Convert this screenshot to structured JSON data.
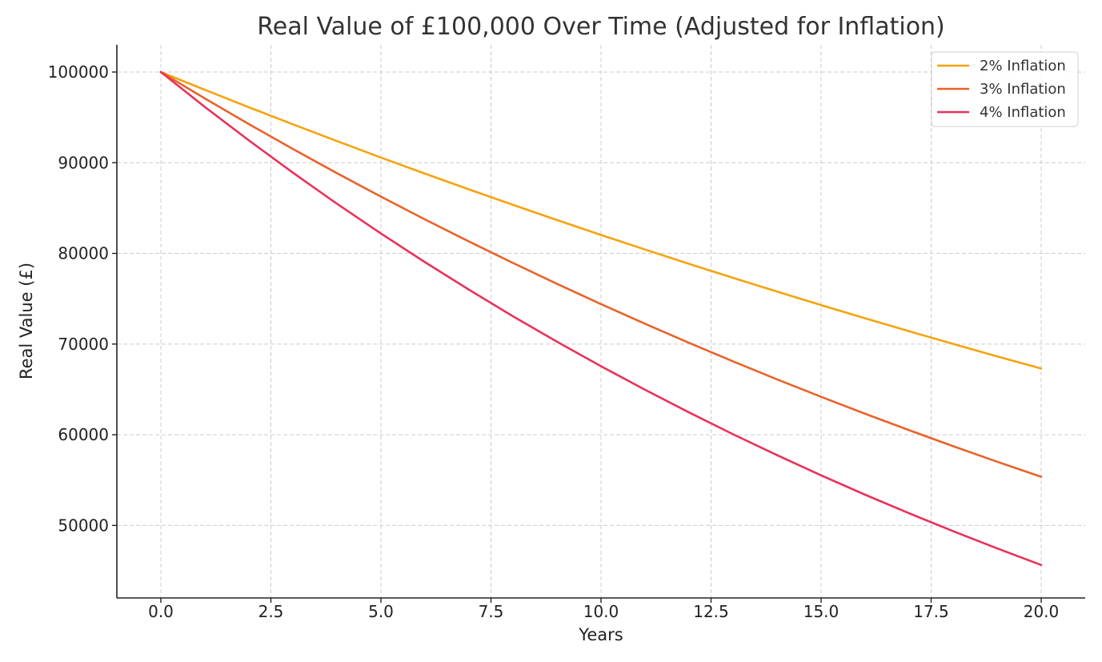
{
  "chart_data": {
    "type": "line",
    "title": "Real Value of £100,000 Over Time (Adjusted for Inflation)",
    "xlabel": "Years",
    "ylabel": "Real Value (£)",
    "xlim": [
      -1,
      21
    ],
    "ylim": [
      42000,
      103000
    ],
    "xticks": [
      0,
      2.5,
      5,
      7.5,
      10,
      12.5,
      15,
      17.5,
      20
    ],
    "xtick_labels": [
      "0.0",
      "2.5",
      "5.0",
      "7.5",
      "10.0",
      "12.5",
      "15.0",
      "17.5",
      "20.0"
    ],
    "yticks": [
      50000,
      60000,
      70000,
      80000,
      90000,
      100000
    ],
    "ytick_labels": [
      "50000",
      "60000",
      "70000",
      "80000",
      "90000",
      "100000"
    ],
    "grid": true,
    "legend_position": "top-right",
    "x": [
      0,
      1,
      2,
      3,
      4,
      5,
      6,
      7,
      8,
      9,
      10,
      11,
      12,
      13,
      14,
      15,
      16,
      17,
      18,
      19,
      20
    ],
    "series": [
      {
        "name": "2% Inflation",
        "color": "#f5a30f",
        "values": [
          100000,
          98039,
          96117,
          94232,
          92385,
          90573,
          88797,
          87056,
          85349,
          83676,
          82035,
          80426,
          78849,
          77303,
          75788,
          74301,
          72845,
          71416,
          70016,
          68643,
          67297
        ]
      },
      {
        "name": "3% Inflation",
        "color": "#e8632a",
        "values": [
          100000,
          97087,
          94260,
          91514,
          88849,
          86261,
          83748,
          81309,
          78941,
          76642,
          74409,
          72242,
          70138,
          68095,
          66112,
          64186,
          62317,
          60502,
          58739,
          57029,
          55368
        ]
      },
      {
        "name": "4% Inflation",
        "color": "#e8325a",
        "values": [
          100000,
          96154,
          92456,
          88900,
          85480,
          82193,
          79031,
          75992,
          73069,
          70259,
          67556,
          64958,
          62460,
          60057,
          57748,
          55526,
          53391,
          51337,
          49363,
          47464,
          45639
        ]
      }
    ]
  }
}
